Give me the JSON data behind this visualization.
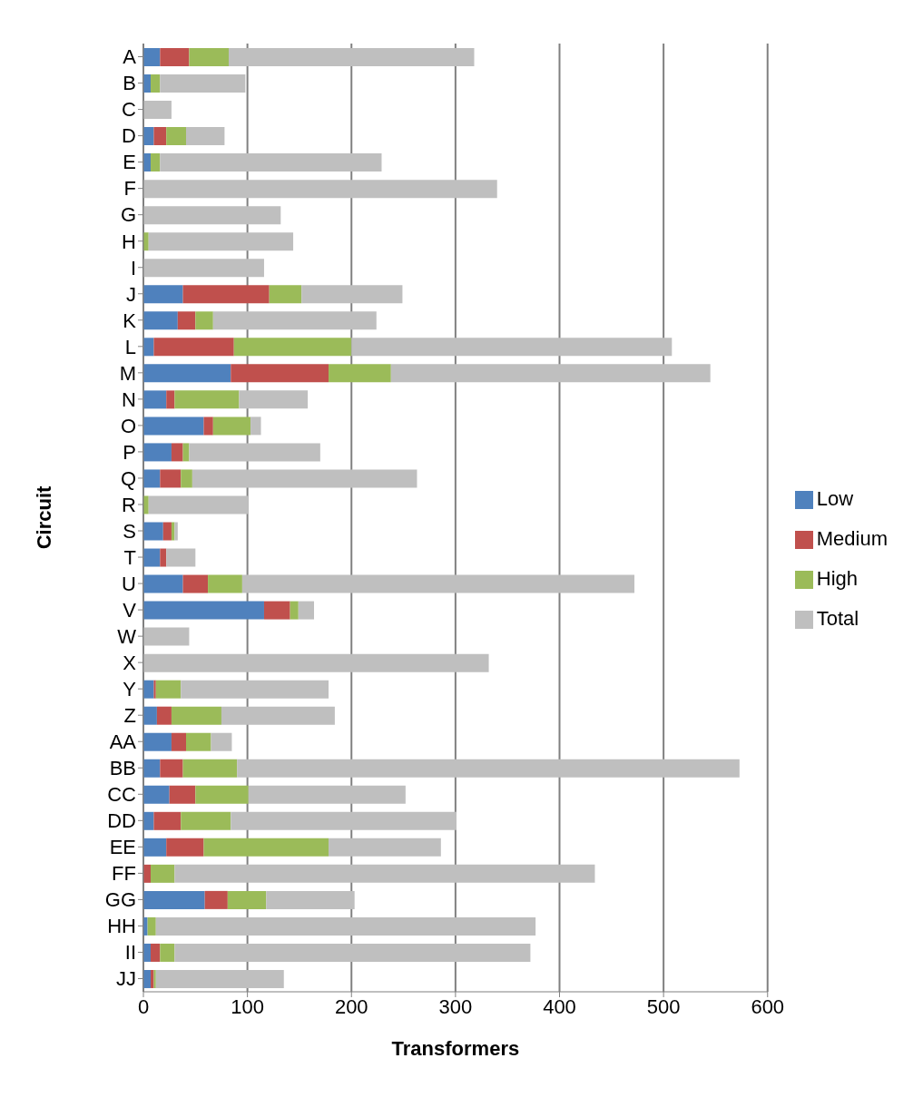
{
  "chart_data": {
    "type": "bar",
    "orientation": "horizontal",
    "stacked": true,
    "xlabel": "Transformers",
    "ylabel": "Circuit",
    "categories": [
      "A",
      "B",
      "C",
      "D",
      "E",
      "F",
      "G",
      "H",
      "I",
      "J",
      "K",
      "L",
      "M",
      "N",
      "O",
      "P",
      "Q",
      "R",
      "S",
      "T",
      "U",
      "V",
      "W",
      "X",
      "Y",
      "Z",
      "AA",
      "BB",
      "CC",
      "DD",
      "EE",
      "FF",
      "GG",
      "HH",
      "II",
      "JJ"
    ],
    "series": [
      {
        "name": "Low",
        "color": "#4f81bd",
        "values": [
          16,
          7,
          0,
          10,
          7,
          0,
          0,
          0,
          0,
          38,
          33,
          10,
          84,
          22,
          58,
          27,
          16,
          0,
          19,
          16,
          38,
          116,
          0,
          0,
          10,
          13,
          27,
          16,
          25,
          10,
          22,
          0,
          59,
          4,
          7,
          7
        ]
      },
      {
        "name": "Medium",
        "color": "#c0504d",
        "values": [
          28,
          0,
          0,
          12,
          0,
          0,
          0,
          0,
          0,
          83,
          17,
          77,
          94,
          8,
          9,
          11,
          20,
          0,
          8,
          6,
          24,
          25,
          0,
          0,
          2,
          14,
          14,
          22,
          25,
          26,
          36,
          7,
          22,
          0,
          9,
          3
        ]
      },
      {
        "name": "High",
        "color": "#9bbb59",
        "values": [
          38,
          9,
          0,
          19,
          9,
          0,
          0,
          5,
          0,
          31,
          17,
          113,
          60,
          62,
          36,
          6,
          11,
          5,
          3,
          0,
          33,
          8,
          0,
          0,
          24,
          48,
          24,
          52,
          51,
          48,
          120,
          23,
          37,
          8,
          14,
          2
        ]
      },
      {
        "name": "Total",
        "color": "#bfbfbf",
        "values": [
          236,
          82,
          27,
          37,
          213,
          340,
          132,
          139,
          116,
          97,
          157,
          308,
          307,
          66,
          10,
          126,
          216,
          96,
          3,
          28,
          377,
          15,
          44,
          332,
          142,
          109,
          20,
          483,
          151,
          217,
          108,
          404,
          85,
          365,
          342,
          123
        ]
      }
    ],
    "xlim": [
      0,
      600
    ],
    "xticks": [
      0,
      100,
      200,
      300,
      400,
      500,
      600
    ],
    "grid": "x",
    "legend": "right"
  }
}
